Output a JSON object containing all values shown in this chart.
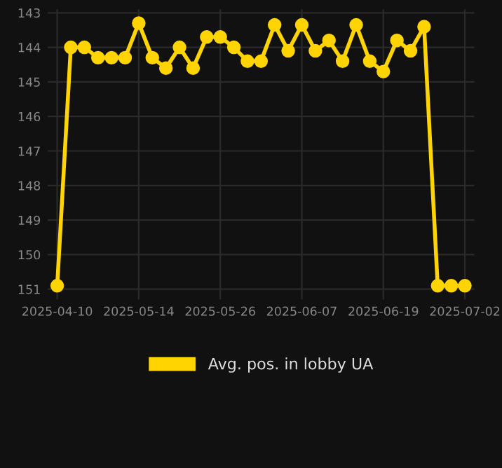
{
  "chart_data": {
    "type": "line",
    "categories": [
      "2025-04-10",
      null,
      null,
      null,
      null,
      null,
      "2025-05-14",
      null,
      null,
      null,
      null,
      null,
      "2025-05-26",
      null,
      null,
      null,
      null,
      null,
      "2025-06-07",
      null,
      null,
      null,
      null,
      null,
      "2025-06-19",
      null,
      null,
      null,
      null,
      null,
      "2025-07-02"
    ],
    "series": [
      {
        "name": "Avg. pos. in lobby UA",
        "color": "#ffd400",
        "values": [
          150.9,
          144.0,
          144.0,
          144.3,
          144.3,
          144.3,
          143.3,
          144.3,
          144.6,
          144.0,
          144.6,
          143.7,
          143.7,
          144.0,
          144.4,
          144.4,
          143.35,
          144.1,
          143.35,
          144.1,
          143.8,
          144.4,
          143.35,
          144.4,
          144.7,
          143.8,
          144.1,
          143.4,
          150.9,
          150.9,
          150.9
        ]
      }
    ],
    "ylim": [
      151.3,
      142.9
    ],
    "yticks": [
      143,
      144,
      145,
      146,
      147,
      148,
      149,
      150,
      151
    ],
    "grid": true,
    "legend": "bottom",
    "marker": "circle",
    "line_style": "solid"
  }
}
